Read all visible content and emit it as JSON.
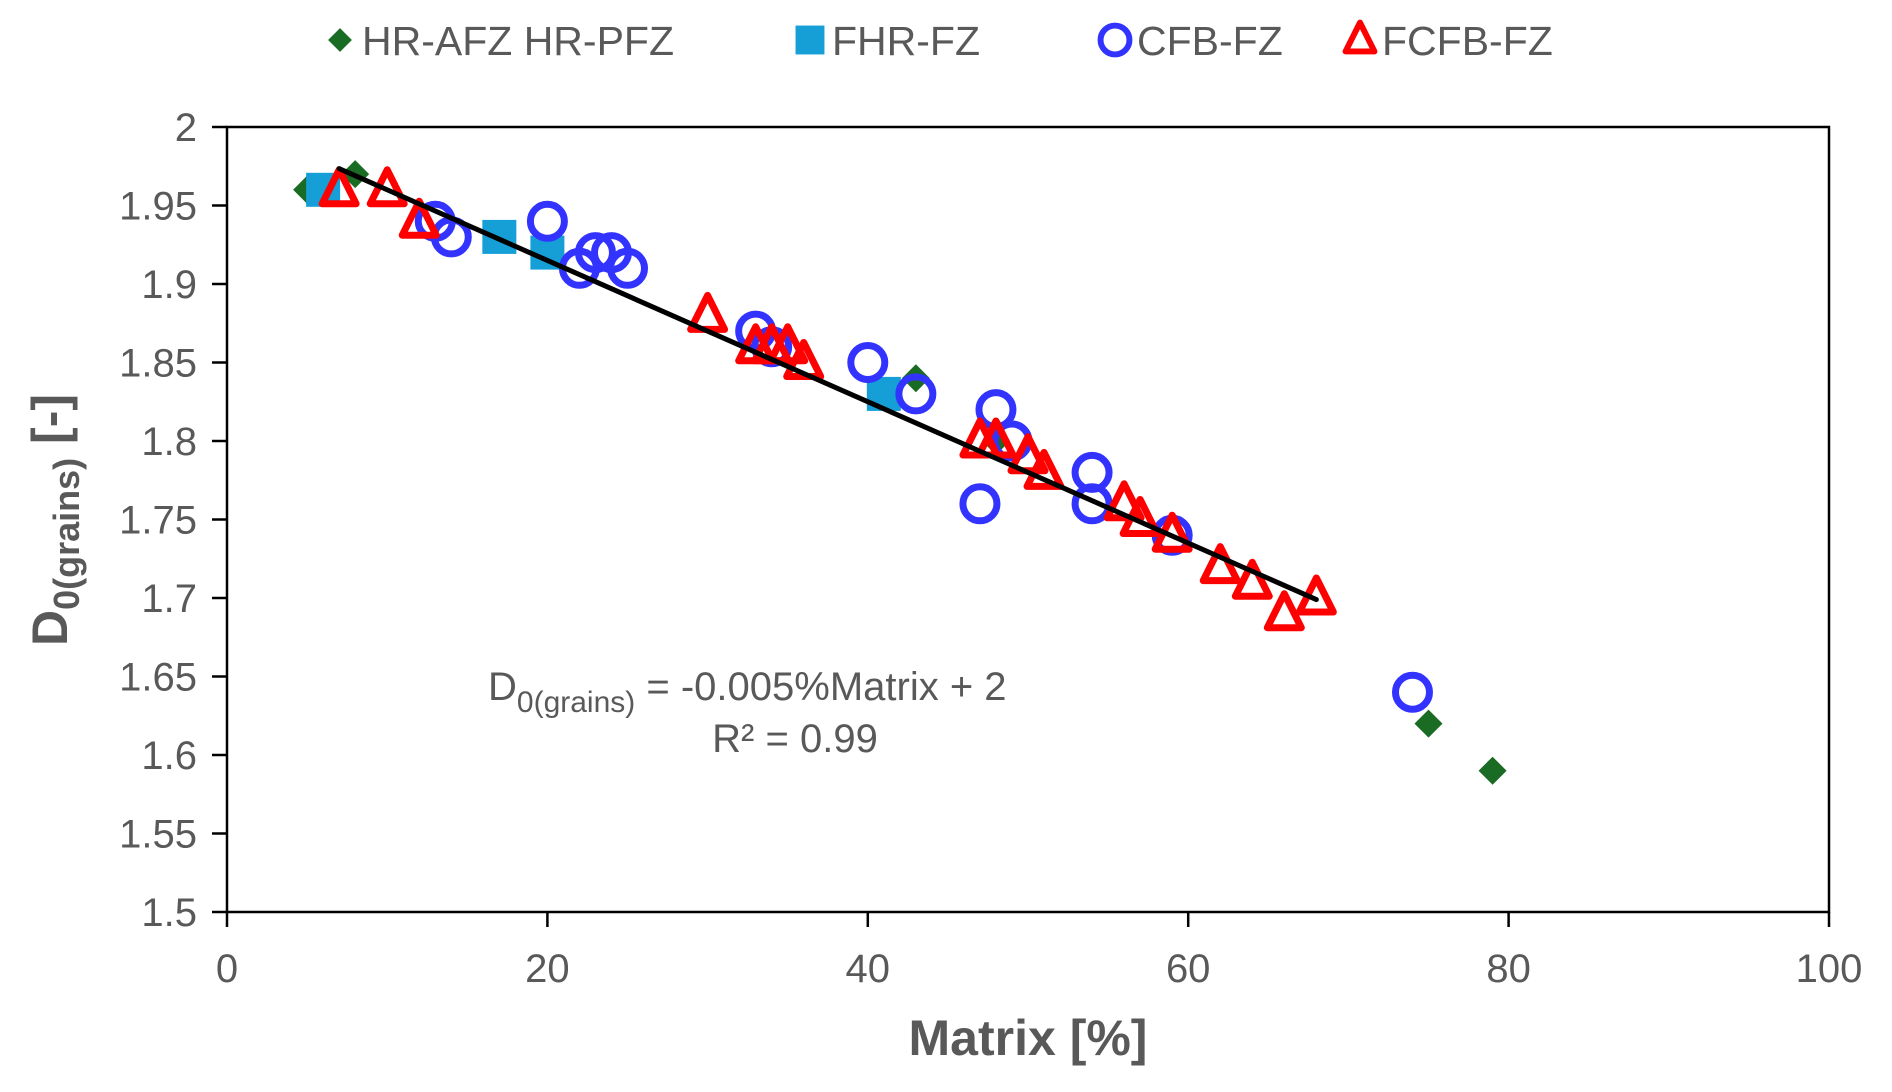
{
  "chart_data": {
    "type": "scatter",
    "title": "",
    "xlabel": "Matrix [%]",
    "ylabel_main": "D",
    "ylabel_sub": "0(grains)",
    "ylabel_suffix": " [-]",
    "xlim": [
      0,
      100
    ],
    "ylim": [
      1.5,
      2
    ],
    "x_ticks": [
      0,
      20,
      40,
      60,
      80,
      100
    ],
    "x_tick_labels": [
      "0",
      "20",
      "40",
      "60",
      "80",
      "100"
    ],
    "y_ticks": [
      1.5,
      1.55,
      1.6,
      1.65,
      1.7,
      1.75,
      1.8,
      1.85,
      1.9,
      1.95,
      2
    ],
    "y_tick_labels": [
      "1.5",
      "1.55",
      "1.6",
      "1.65",
      "1.7",
      "1.75",
      "1.8",
      "1.85",
      "1.9",
      "1.95",
      "2"
    ],
    "grid": false,
    "legend_position": "top",
    "series": [
      {
        "name": "HR-AFZ HR-PFZ",
        "marker": "diamond",
        "color": "#1a6b24",
        "points": [
          [
            5,
            1.96
          ],
          [
            8,
            1.97
          ],
          [
            43,
            1.84
          ],
          [
            48,
            1.8
          ],
          [
            75,
            1.62
          ],
          [
            79,
            1.59
          ]
        ]
      },
      {
        "name": "FHR-FZ",
        "marker": "square",
        "color": "#169fd6",
        "points": [
          [
            6,
            1.96
          ],
          [
            17,
            1.93
          ],
          [
            20,
            1.92
          ],
          [
            41,
            1.83
          ]
        ]
      },
      {
        "name": "CFB-FZ",
        "marker": "circle",
        "color": "#3333ff",
        "points": [
          [
            13,
            1.94
          ],
          [
            14,
            1.93
          ],
          [
            20,
            1.94
          ],
          [
            22,
            1.91
          ],
          [
            23,
            1.92
          ],
          [
            24,
            1.92
          ],
          [
            25,
            1.91
          ],
          [
            33,
            1.87
          ],
          [
            34,
            1.86
          ],
          [
            40,
            1.85
          ],
          [
            43,
            1.83
          ],
          [
            47,
            1.76
          ],
          [
            48,
            1.82
          ],
          [
            49,
            1.8
          ],
          [
            54,
            1.78
          ],
          [
            54,
            1.76
          ],
          [
            59,
            1.74
          ],
          [
            74,
            1.64
          ]
        ]
      },
      {
        "name": "FCFB-FZ",
        "marker": "triangle",
        "color": "#ff0000",
        "points": [
          [
            7,
            1.96
          ],
          [
            10,
            1.96
          ],
          [
            12,
            1.94
          ],
          [
            30,
            1.88
          ],
          [
            33,
            1.86
          ],
          [
            34,
            1.86
          ],
          [
            35,
            1.86
          ],
          [
            36,
            1.85
          ],
          [
            47,
            1.8
          ],
          [
            48,
            1.8
          ],
          [
            50,
            1.79
          ],
          [
            51,
            1.78
          ],
          [
            56,
            1.76
          ],
          [
            57,
            1.75
          ],
          [
            59,
            1.74
          ],
          [
            62,
            1.72
          ],
          [
            64,
            1.71
          ],
          [
            66,
            1.69
          ],
          [
            68,
            1.7
          ]
        ]
      }
    ],
    "trendline": {
      "slope": -0.0045,
      "intercept": 2.005,
      "x_range": [
        7,
        68
      ],
      "color": "#000000",
      "equation_main": "D",
      "equation_sub": "0(grains)",
      "equation_rest": " = -0.005%Matrix + 2",
      "r_squared": "R² = 0.99"
    }
  }
}
